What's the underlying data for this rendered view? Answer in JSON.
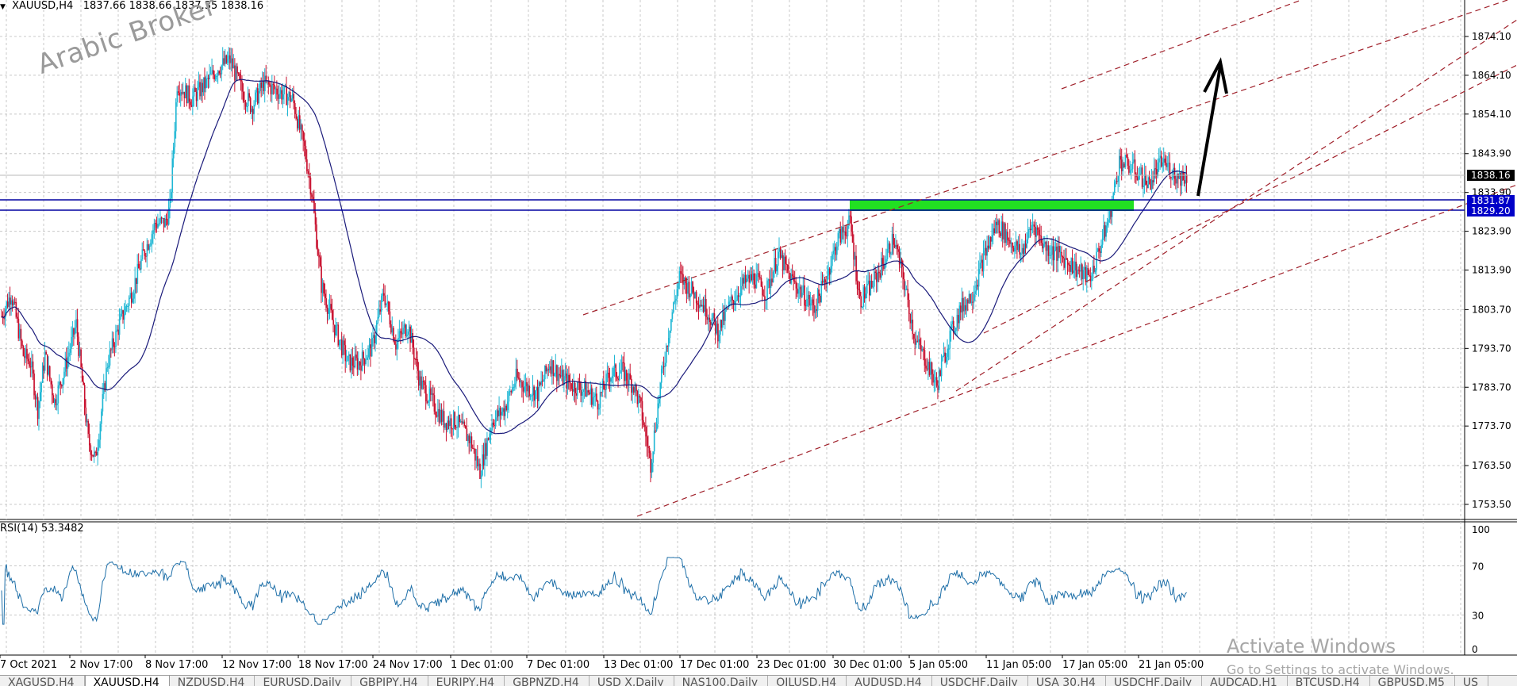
{
  "header": {
    "symbol": "XAUUSD,H4",
    "ohlc": "1837.66 1838.66 1837.35 1838.16"
  },
  "watermark": "Arabic Broker",
  "price_axis": {
    "ticks": [
      "1874.10",
      "1864.10",
      "1854.10",
      "1843.90",
      "1833.90",
      "1823.90",
      "1813.90",
      "1803.70",
      "1793.70",
      "1783.70",
      "1773.70",
      "1763.50",
      "1753.50"
    ],
    "current_price": "1838.16",
    "line_a": "1831.87",
    "line_b": "1829.20",
    "current_color": "#000000",
    "marker_color": "#0000c8"
  },
  "rsi": {
    "label": "RSI(14) 53.3482",
    "ticks": [
      "100",
      "70",
      "30",
      "0"
    ],
    "line_color": "#1e6fa8"
  },
  "time_axis": {
    "labels": [
      "7 Oct 2021",
      "2 Nov 17:00",
      "8 Nov 17:00",
      "12 Nov 17:00",
      "18 Nov 17:00",
      "24 Nov 17:00",
      "1 Dec 01:00",
      "7 Dec 01:00",
      "13 Dec 01:00",
      "17 Dec 01:00",
      "23 Dec 01:00",
      "30 Dec 01:00",
      "5 Jan 05:00",
      "11 Jan 05:00",
      "17 Jan 05:00",
      "21 Jan 05:00"
    ]
  },
  "colors": {
    "bull": "#1fb7d4",
    "bear": "#c8102e",
    "ma": "#1a1a7a",
    "zone": "#22e022",
    "channel": "#a0202a",
    "grid": "#c8c8c8"
  },
  "windows_notice": {
    "title": "Activate Windows",
    "subtitle": "Go to Settings to activate Windows."
  },
  "tabs": [
    "XAGUSD,H4",
    "XAUUSD,H4",
    "NZDUSD,H4",
    "EURUSD,Daily",
    "GBPJPY,H4",
    "EURJPY,H4",
    "GBPNZD,H4",
    "USD X,Daily",
    "NAS100,Daily",
    "OILUSD,H4",
    "AUDUSD,H4",
    "USDCHF,Daily",
    "USA 30,H4",
    "USDCHF,Daily",
    "AUDCAD,H1",
    "BTCUSD,H4",
    "GBPUSD,M5",
    "US"
  ],
  "active_tab_index": 1
}
